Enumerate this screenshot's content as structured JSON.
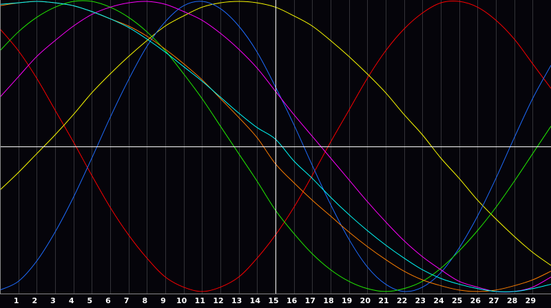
{
  "chart_data": {
    "type": "line",
    "title": "",
    "xlabel": "",
    "ylabel": "",
    "xlim": [
      0,
      30
    ],
    "ylim": [
      -1,
      1
    ],
    "grid": "vertical",
    "crosshair": {
      "x": 15,
      "y": 0
    },
    "x_ticks": [
      1,
      2,
      3,
      4,
      5,
      6,
      7,
      8,
      9,
      10,
      11,
      12,
      13,
      14,
      15,
      16,
      17,
      18,
      19,
      20,
      21,
      22,
      23,
      24,
      25,
      26,
      27,
      28,
      29
    ],
    "x": [
      0,
      1,
      2,
      3,
      4,
      5,
      6,
      7,
      8,
      9,
      10,
      11,
      12,
      13,
      14,
      15,
      16,
      17,
      18,
      19,
      20,
      21,
      22,
      23,
      24,
      25,
      26,
      27,
      28,
      29,
      30
    ],
    "background": "#05040a",
    "series": [
      {
        "color": "#ff0000",
        "values": [
          0.81,
          0.66,
          0.47,
          0.25,
          0.03,
          -0.2,
          -0.42,
          -0.61,
          -0.77,
          -0.9,
          -0.97,
          -1,
          -0.97,
          -0.9,
          -0.77,
          -0.61,
          -0.42,
          -0.2,
          0.03,
          0.25,
          0.47,
          0.66,
          0.81,
          0.92,
          0.99,
          1,
          0.96,
          0.87,
          0.74,
          0.57,
          0.4
        ]
      },
      {
        "color": "#ffff00",
        "values": [
          -0.3,
          -0.18,
          -0.05,
          0.08,
          0.22,
          0.37,
          0.5,
          0.62,
          0.73,
          0.83,
          0.9,
          0.96,
          0.99,
          1,
          0.99,
          0.96,
          0.9,
          0.83,
          0.73,
          0.62,
          0.5,
          0.37,
          0.22,
          0.08,
          -0.08,
          -0.22,
          -0.37,
          -0.5,
          -0.62,
          -0.73,
          -0.82
        ]
      },
      {
        "color": "#1e6cff",
        "values": [
          -0.99,
          -0.93,
          -0.79,
          -0.59,
          -0.35,
          -0.08,
          0.2,
          0.46,
          0.69,
          0.86,
          0.97,
          1,
          0.95,
          0.83,
          0.65,
          0.41,
          0.15,
          -0.13,
          -0.4,
          -0.64,
          -0.83,
          -0.95,
          -1,
          -0.97,
          -0.87,
          -0.7,
          -0.48,
          -0.22,
          0.06,
          0.33,
          0.56
        ]
      },
      {
        "color": "#22ee00",
        "values": [
          0.66,
          0.79,
          0.89,
          0.96,
          1,
          1,
          0.96,
          0.89,
          0.79,
          0.66,
          0.5,
          0.33,
          0.14,
          -0.05,
          -0.24,
          -0.44,
          -0.6,
          -0.74,
          -0.85,
          -0.93,
          -0.98,
          -1,
          -0.98,
          -0.93,
          -0.84,
          -0.72,
          -0.58,
          -0.42,
          -0.24,
          -0.05,
          0.14
        ]
      },
      {
        "color": "#ff00ff",
        "values": [
          0.34,
          0.48,
          0.62,
          0.73,
          0.83,
          0.91,
          0.96,
          0.99,
          1,
          0.98,
          0.93,
          0.87,
          0.78,
          0.67,
          0.54,
          0.38,
          0.22,
          0.07,
          -0.08,
          -0.23,
          -0.38,
          -0.52,
          -0.65,
          -0.76,
          -0.85,
          -0.93,
          -0.97,
          -1,
          -1,
          -0.97,
          -0.9
        ]
      },
      {
        "color": "#ff8000",
        "values": [
          0.97,
          0.99,
          1,
          0.99,
          0.97,
          0.93,
          0.88,
          0.83,
          0.76,
          0.67,
          0.57,
          0.46,
          0.33,
          0.2,
          0.06,
          -0.12,
          -0.25,
          -0.37,
          -0.48,
          -0.59,
          -0.69,
          -0.78,
          -0.86,
          -0.92,
          -0.96,
          -0.99,
          -1,
          -0.99,
          -0.96,
          -0.92,
          -0.86
        ]
      },
      {
        "color": "#00ffff",
        "values": [
          0.98,
          0.99,
          1,
          0.99,
          0.97,
          0.93,
          0.88,
          0.82,
          0.74,
          0.65,
          0.55,
          0.45,
          0.34,
          0.23,
          0.13,
          0.05,
          -0.1,
          -0.22,
          -0.35,
          -0.47,
          -0.58,
          -0.68,
          -0.77,
          -0.85,
          -0.91,
          -0.95,
          -0.98,
          -1,
          -1,
          -0.98,
          -0.95
        ]
      }
    ]
  }
}
